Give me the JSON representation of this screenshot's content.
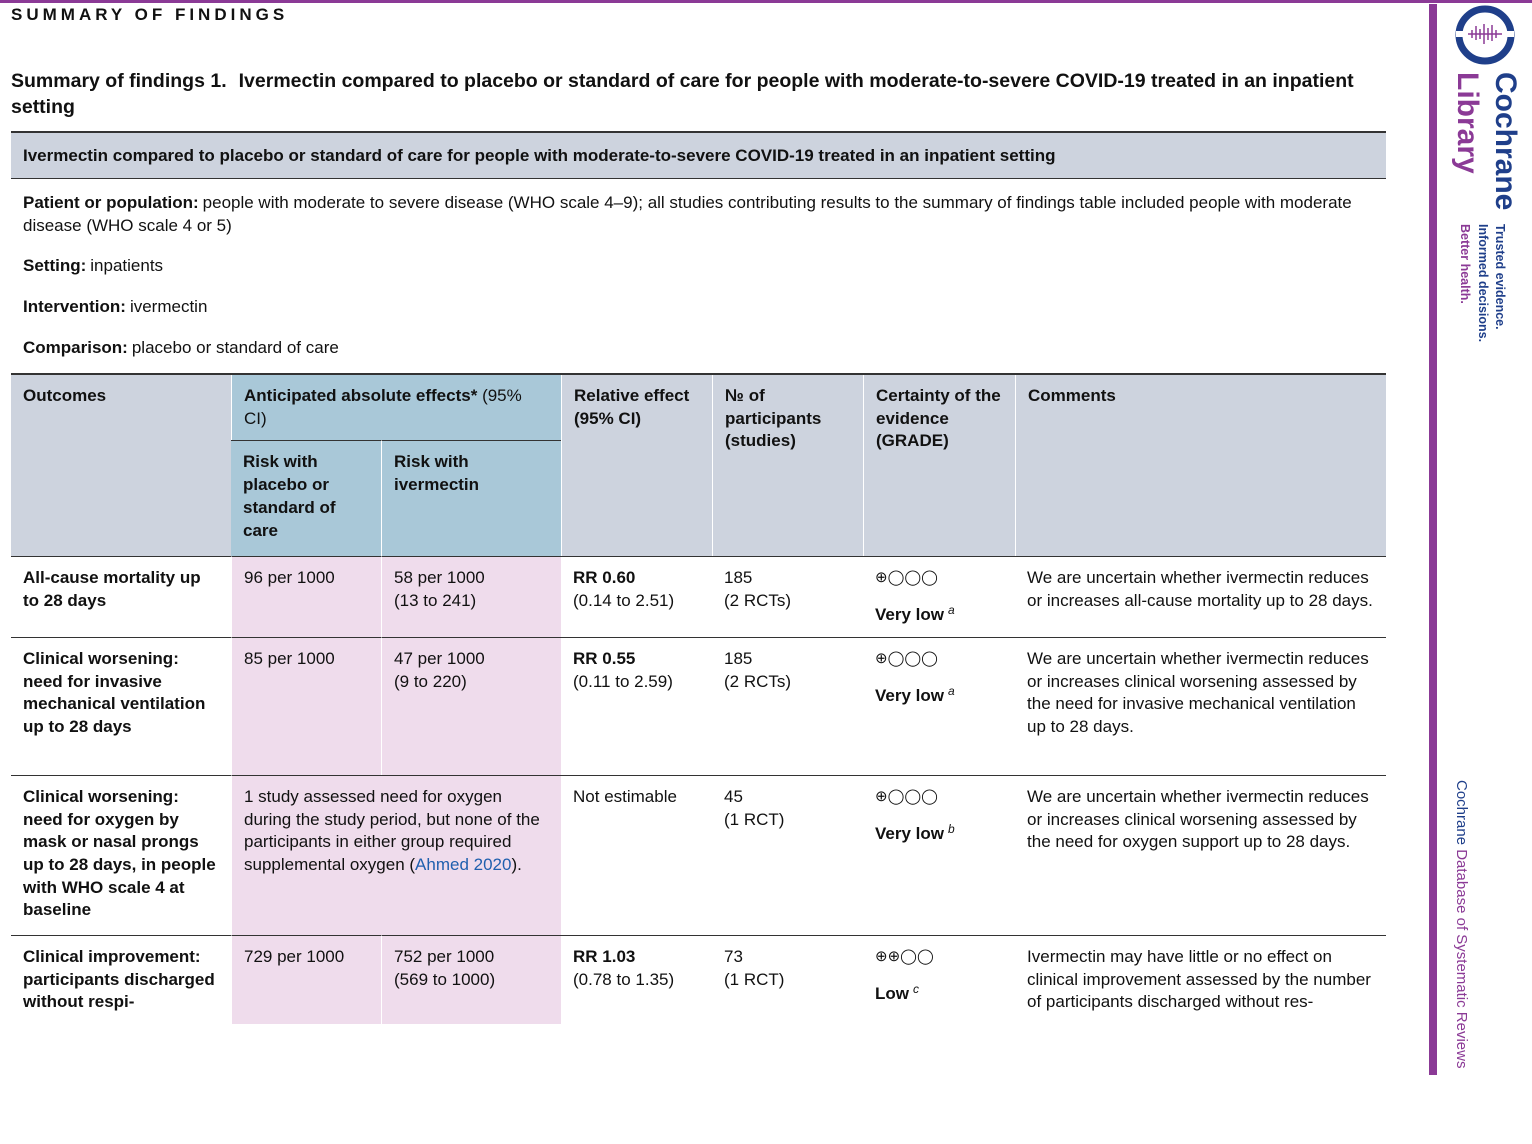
{
  "section_heading": "SUMMARY OF FINDINGS",
  "table_title": {
    "label": "Summary of findings 1.",
    "text": "Ivermectin compared to placebo or standard of care for people with moderate-to-severe COVID-19 treated in an inpatient setting"
  },
  "banner": "Ivermectin compared to placebo or standard of care for people with moderate-to-severe COVID-19 treated in an inpatient setting",
  "info": [
    {
      "label": "Patient or population:",
      "text": "people with moderate to severe disease (WHO scale 4–9); all studies contributing results to the summary of findings table included people with moderate disease (WHO scale 4 or 5)"
    },
    {
      "label": "Setting:",
      "text": "inpatients"
    },
    {
      "label": "Intervention:",
      "text": "ivermectin"
    },
    {
      "label": "Comparison:",
      "text": "placebo or standard of care"
    }
  ],
  "header": {
    "outcomes": "Outcomes",
    "anticipated": "Anticipated absolute effects*",
    "anticipated_ci": "(95% CI)",
    "risk_placebo": "Risk with placebo or standard of care",
    "risk_ivermectin": "Risk with ivermectin",
    "relative": "Relative effect (95% CI)",
    "participants": "№ of participants (studies)",
    "certainty": "Certainty of the evidence (GRADE)",
    "comments": "Comments"
  },
  "rows": [
    {
      "outcome": "All-cause mortality up to 28 days",
      "placebo": "96 per 1000",
      "ivermectin": "58 per 1000",
      "ivermectin_ci": "(13 to 241)",
      "relative": "RR 0.60",
      "relative_ci": "(0.14 to 2.51)",
      "participants": "185",
      "studies": "(2 RCTs)",
      "symbols": "⊕◯◯◯",
      "grade": "Very low",
      "footnote": "a",
      "comment": "We are uncertain whether ivermectin reduces or increases all-cause mortality up to 28 days."
    },
    {
      "outcome": "Clinical worsening: need for invasive mechanical ventilation up to 28 days",
      "placebo": "85 per 1000",
      "ivermectin": "47 per 1000",
      "ivermectin_ci": "(9 to 220)",
      "relative": "RR 0.55",
      "relative_ci": "(0.11 to 2.59)",
      "participants": "185",
      "studies": "(2 RCTs)",
      "symbols": "⊕◯◯◯",
      "grade": "Very low",
      "footnote": "a",
      "comment": "We are uncertain whether ivermectin reduces or increases clinical worsening assessed by the need for invasive mechanical ventilation up to 28 days."
    },
    {
      "outcome": "Clinical worsening: need for oxygen by mask or nasal prongs up to 28 days, in people with WHO scale 4 at baseline",
      "merged": {
        "before": "1 study assessed need for oxygen during the study period, but none of the participants in either group required supplemental oxygen (",
        "link": "Ahmed 2020",
        "after": ")."
      },
      "relative_text": "Not estimable",
      "participants": "45",
      "studies": "(1 RCT)",
      "symbols": "⊕◯◯◯",
      "grade": "Very low",
      "footnote": "b",
      "comment": "We are uncertain whether ivermectin reduces or increases clinical worsening assessed by the need for oxygen support up to 28 days."
    },
    {
      "outcome": "Clinical improvement: participants discharged without respi-",
      "placebo": "729 per 1000",
      "ivermectin": "752 per 1000",
      "ivermectin_ci": "(569 to 1000)",
      "relative": "RR 1.03",
      "relative_ci": "(0.78 to 1.35)",
      "participants": "73",
      "studies": "(1 RCT)",
      "symbols": "⊕⊕◯◯",
      "grade": "Low",
      "footnote": "c",
      "comment": "Ivermectin may have little or no effect on clinical improvement assessed by the number of participants discharged without res-"
    }
  ],
  "sidebar": {
    "brand_top": "Cochrane",
    "brand_bottom": "Library",
    "tagline": [
      "Trusted evidence.",
      "Informed decisions.",
      "Better health."
    ],
    "journal_brand": "Cochrane",
    "journal_title": "Database of Systematic Reviews"
  }
}
